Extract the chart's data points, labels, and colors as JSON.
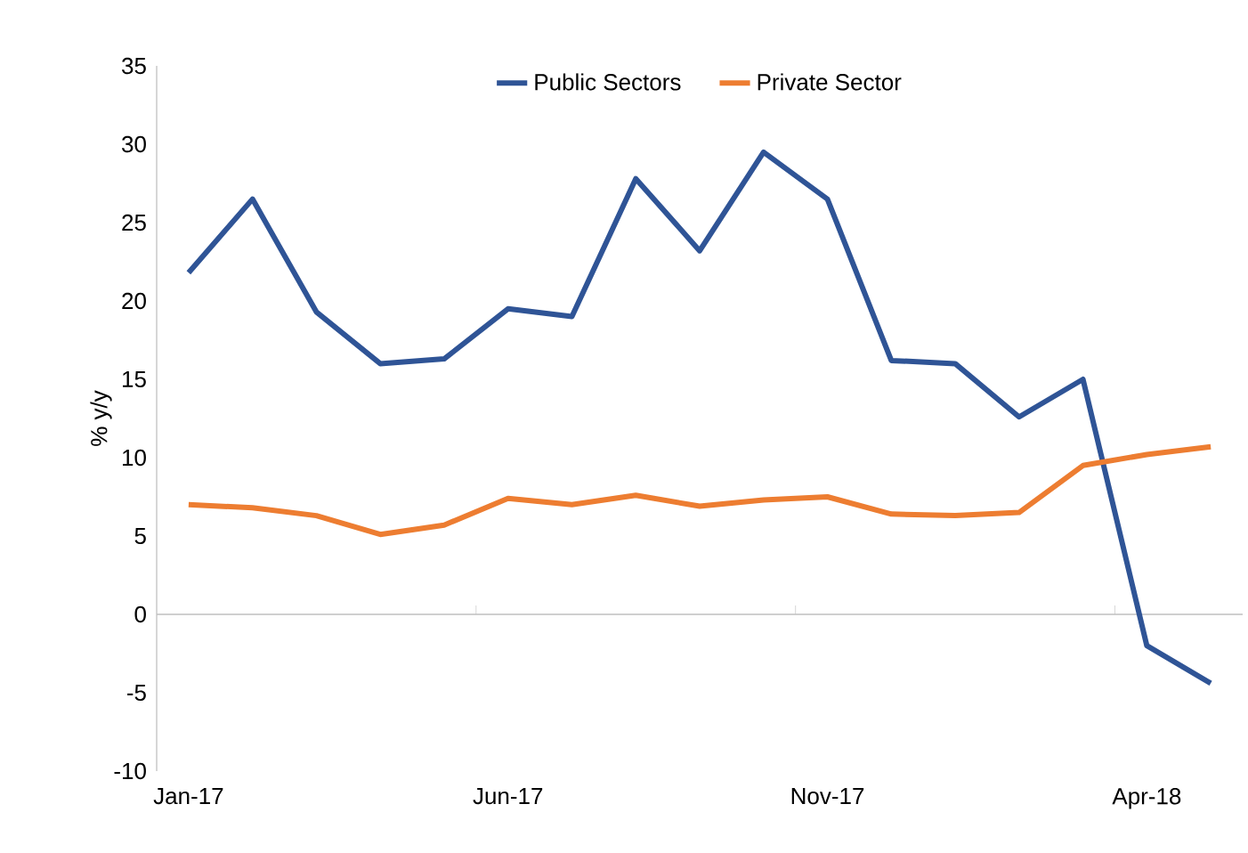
{
  "chart_data": {
    "type": "line",
    "ylabel": "% y/y",
    "categories": [
      "Jan-17",
      null,
      null,
      null,
      null,
      "Jun-17",
      null,
      null,
      null,
      null,
      "Nov-17",
      null,
      null,
      null,
      null,
      "Apr-18",
      null
    ],
    "series": [
      {
        "name": "Public Sectors",
        "color": "#2f5496",
        "values": [
          21.8,
          26.5,
          19.3,
          16,
          16.3,
          19.5,
          19,
          27.8,
          23.2,
          29.5,
          26.5,
          16.2,
          16,
          12.6,
          15,
          -2,
          -4.4
        ]
      },
      {
        "name": "Private Sector",
        "color": "#ed7d31",
        "values": [
          7,
          6.8,
          6.3,
          5.1,
          5.7,
          7.4,
          7,
          7.6,
          6.9,
          7.3,
          7.5,
          6.4,
          6.3,
          6.5,
          9.5,
          10.2,
          10.7
        ]
      }
    ],
    "ref_lines": [
      {
        "axis": "y",
        "value": 0,
        "color": "#bfbfbf"
      }
    ],
    "ylim": [
      -10,
      35
    ],
    "yticks": [
      -10,
      -5,
      0,
      5,
      10,
      15,
      20,
      25,
      30,
      35
    ],
    "legend": "top",
    "grid": false,
    "marker": "none",
    "line_style": "solid"
  }
}
